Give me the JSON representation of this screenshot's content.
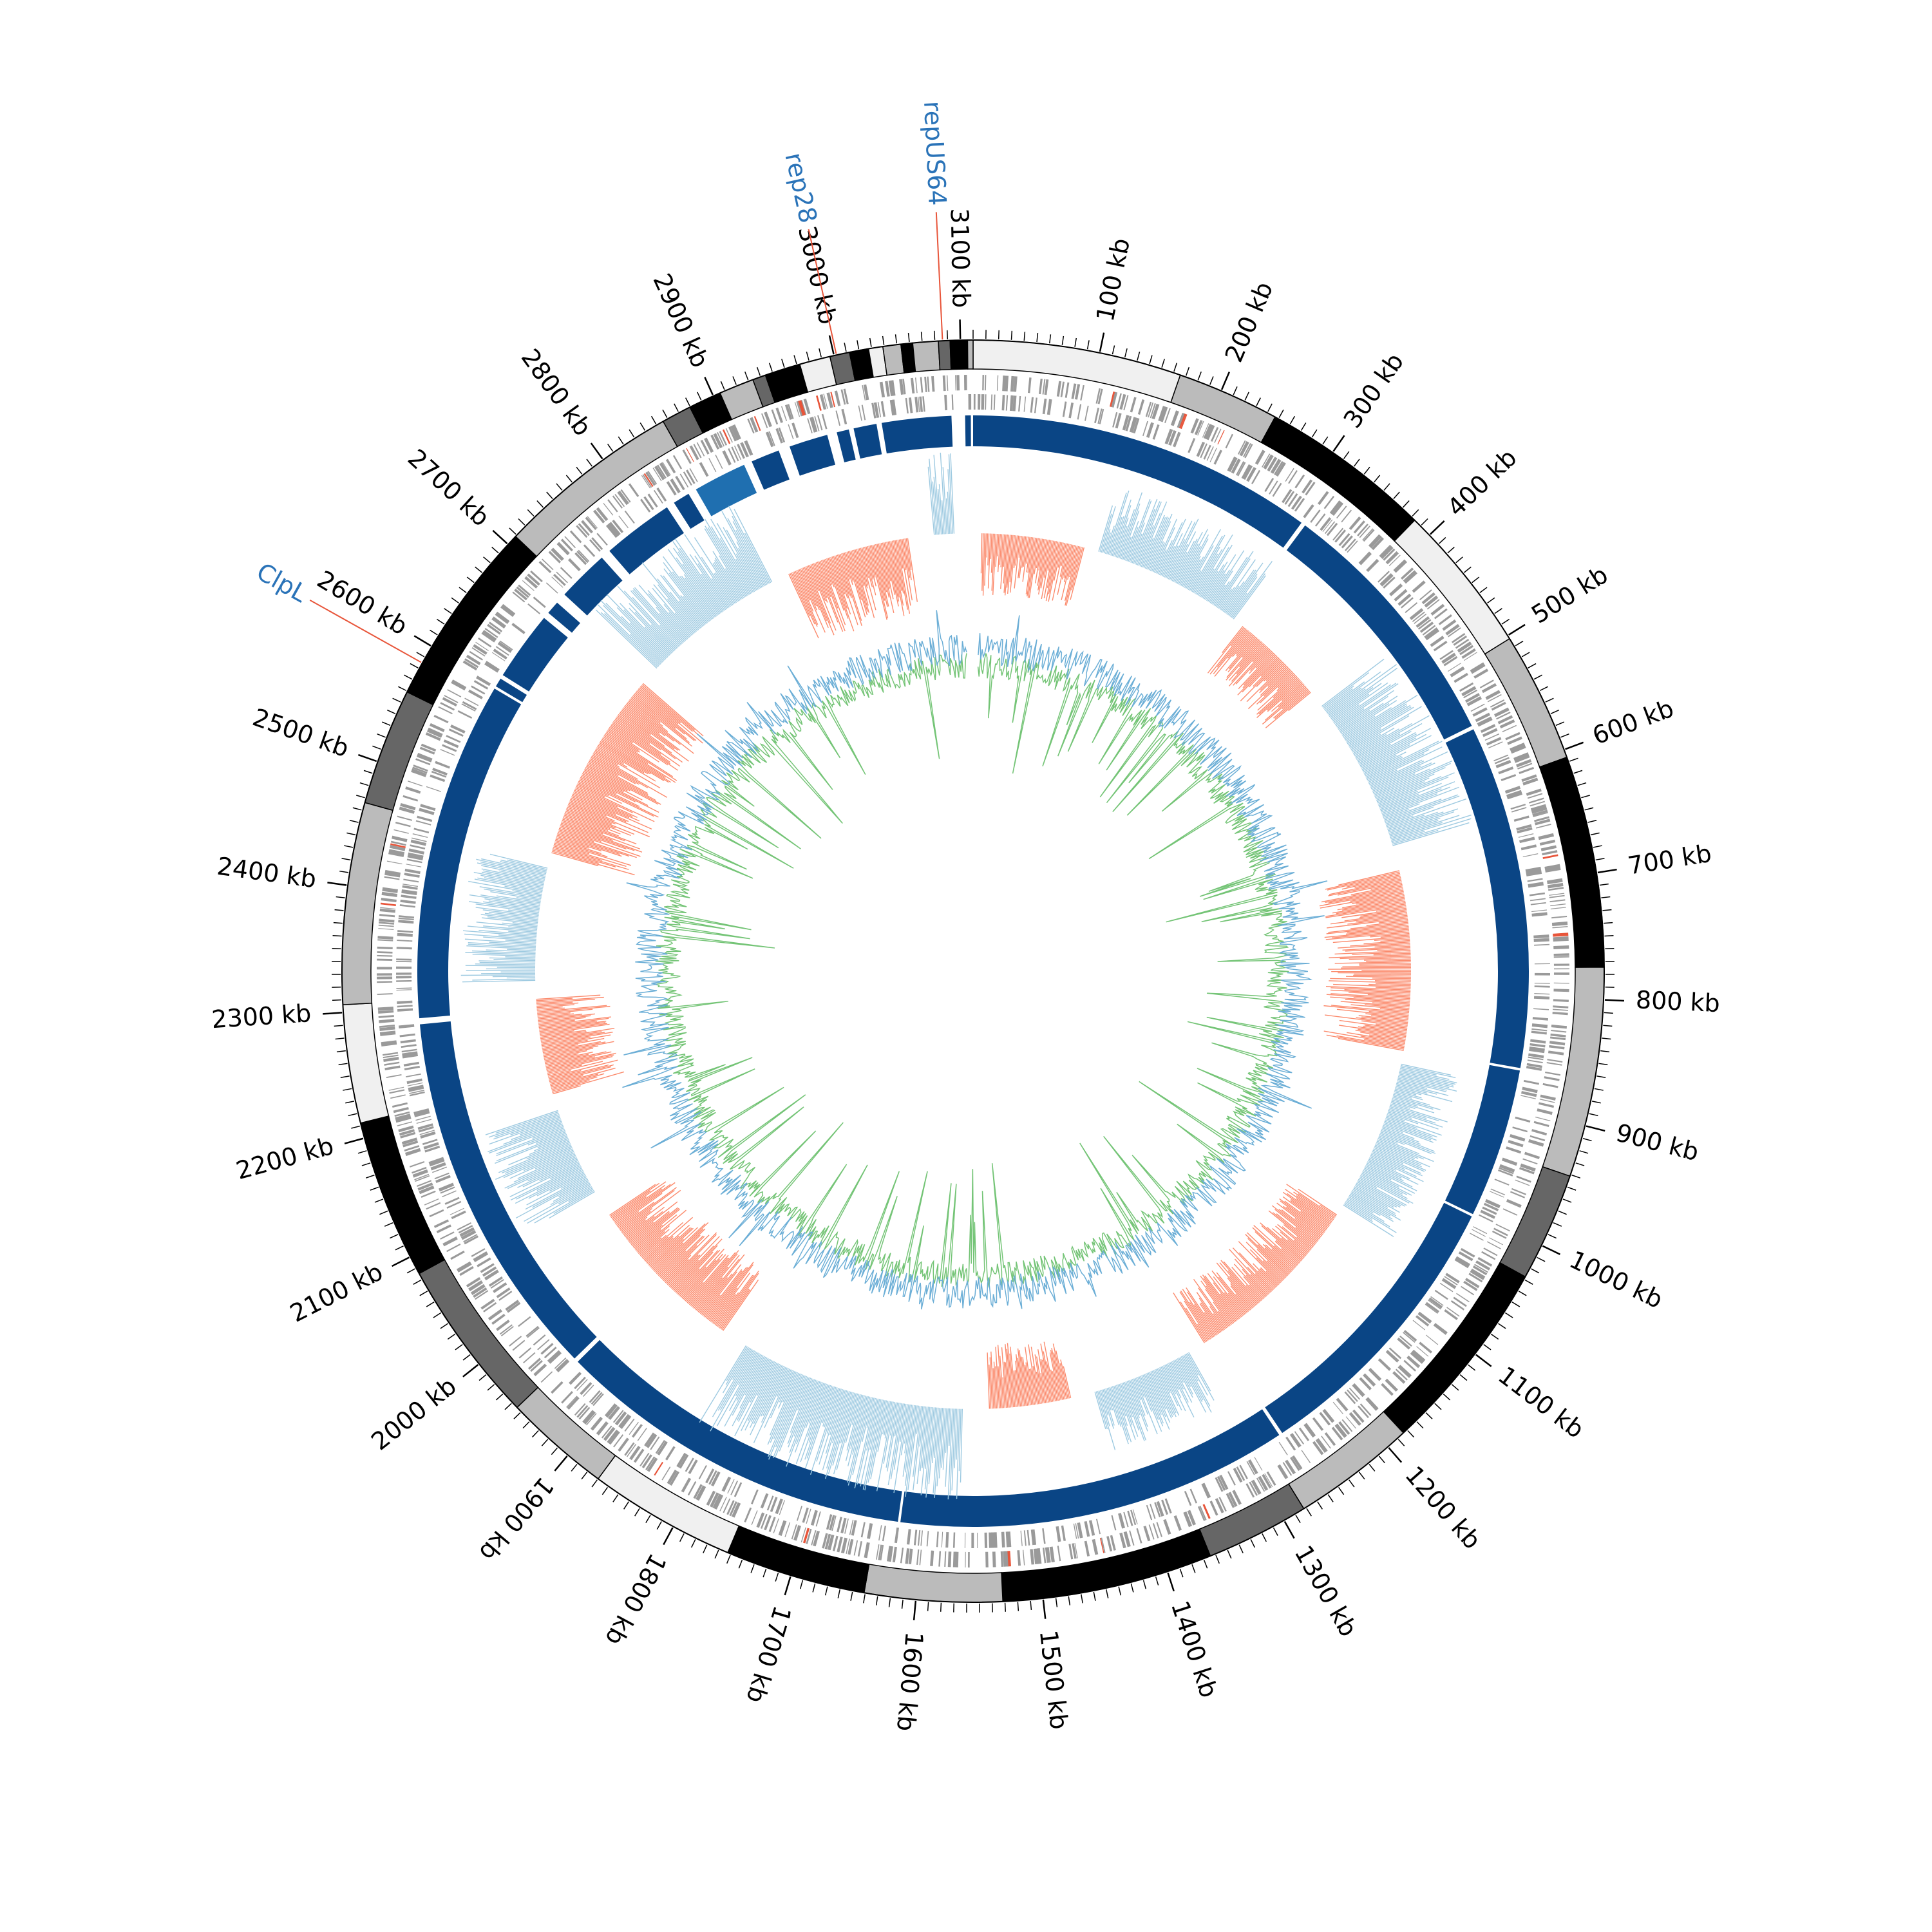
{
  "chart_data": {
    "type": "circos",
    "xlim": [
      0,
      3110
    ],
    "xticks": [
      {
        "value": 100,
        "label": "100 kb"
      },
      {
        "value": 200,
        "label": "200 kb"
      },
      {
        "value": 300,
        "label": "300 kb"
      },
      {
        "value": 400,
        "label": "400 kb"
      },
      {
        "value": 500,
        "label": "500 kb"
      },
      {
        "value": 600,
        "label": "600 kb"
      },
      {
        "value": 700,
        "label": "700 kb"
      },
      {
        "value": 800,
        "label": "800 kb"
      },
      {
        "value": 900,
        "label": "900 kb"
      },
      {
        "value": 1000,
        "label": "1000 kb"
      },
      {
        "value": 1100,
        "label": "1100 kb"
      },
      {
        "value": 1200,
        "label": "1200 kb"
      },
      {
        "value": 1300,
        "label": "1300 kb"
      },
      {
        "value": 1400,
        "label": "1400 kb"
      },
      {
        "value": 1500,
        "label": "1500 kb"
      },
      {
        "value": 1600,
        "label": "1600 kb"
      },
      {
        "value": 1700,
        "label": "1700 kb"
      },
      {
        "value": 1800,
        "label": "1800 kb"
      },
      {
        "value": 1900,
        "label": "1900 kb"
      },
      {
        "value": 2000,
        "label": "2000 kb"
      },
      {
        "value": 2100,
        "label": "2100 kb"
      },
      {
        "value": 2200,
        "label": "2200 kb"
      },
      {
        "value": 2300,
        "label": "2300 kb"
      },
      {
        "value": 2400,
        "label": "2400 kb"
      },
      {
        "value": 2500,
        "label": "2500 kb"
      },
      {
        "value": 2600,
        "label": "2600 kb"
      },
      {
        "value": 2700,
        "label": "2700 kb"
      },
      {
        "value": 2800,
        "label": "2800 kb"
      },
      {
        "value": 2900,
        "label": "2900 kb"
      },
      {
        "value": 3000,
        "label": "3000 kb"
      },
      {
        "value": 3100,
        "label": "3100 kb"
      }
    ],
    "annotations": [
      {
        "x": 3086,
        "label": "repUS64"
      },
      {
        "x": 3002,
        "label": "rep28"
      },
      {
        "x": 2585,
        "label": "ClpL"
      }
    ]
  }
}
